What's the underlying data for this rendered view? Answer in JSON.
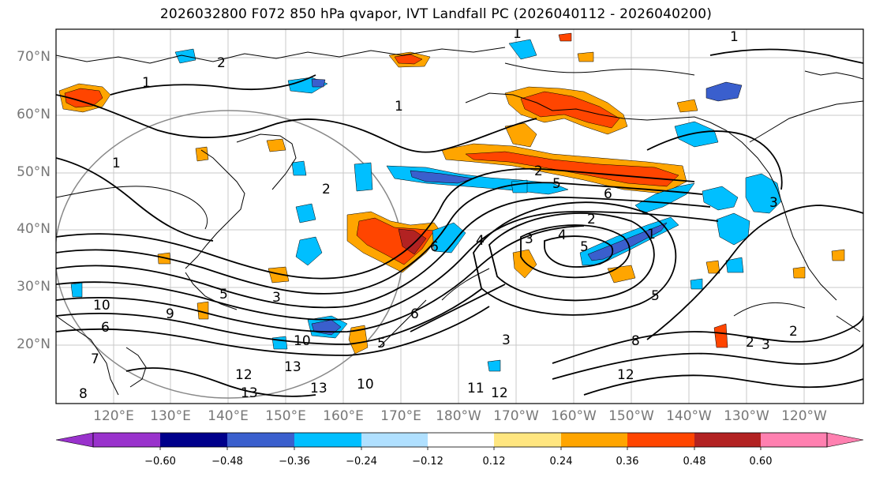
{
  "title": "2026032800 F072 850 hPa qvapor, IVT Landfall PC (2026040112 - 2026040200)",
  "map": {
    "lat_ticks": [
      "70°N",
      "60°N",
      "50°N",
      "40°N",
      "30°N",
      "20°N"
    ],
    "lon_ticks": [
      "120°E",
      "130°E",
      "140°E",
      "150°E",
      "160°E",
      "170°E",
      "180°W",
      "170°W",
      "160°W",
      "150°W",
      "140°W",
      "130°W",
      "120°W"
    ],
    "contour_labels": [
      "1",
      "2",
      "1",
      "1",
      "2",
      "2",
      "5",
      "6",
      "1",
      "3",
      "4",
      "2",
      "3",
      "4",
      "5",
      "2",
      "5",
      "3",
      "5",
      "10",
      "13",
      "12",
      "13",
      "13",
      "10",
      "11",
      "12",
      "12",
      "8",
      "6",
      "5",
      "3",
      "10",
      "9",
      "8",
      "7",
      "6",
      "1",
      "1",
      "2",
      "3",
      "6"
    ]
  },
  "colorbar": {
    "ticks": [
      "−0.60",
      "−0.48",
      "−0.36",
      "−0.24",
      "−0.12",
      "0.12",
      "0.24",
      "0.36",
      "0.48",
      "0.60"
    ],
    "colors": [
      "#9932cc",
      "#00008b",
      "#3a5fcd",
      "#00bfff",
      "#b0e0ff",
      "#ffffff",
      "#ffe680",
      "#ffa500",
      "#ff4500",
      "#b22222",
      "#ff80b0"
    ]
  }
}
